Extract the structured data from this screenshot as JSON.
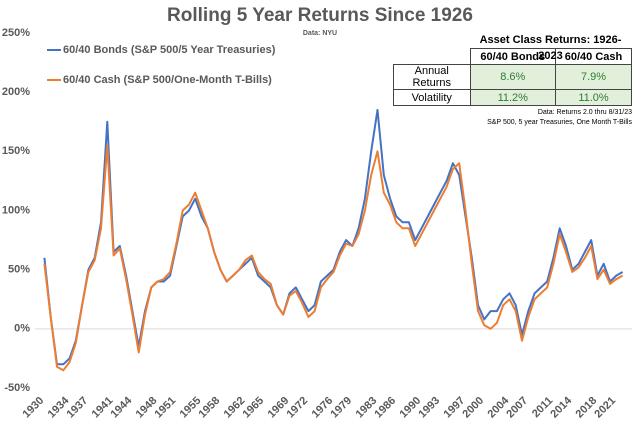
{
  "chart_data": {
    "type": "line",
    "title": "Rolling 5 Year Returns Since 1926",
    "subtitle": "Data: NYU",
    "x": [
      1931,
      1932,
      1933,
      1934,
      1935,
      1936,
      1937,
      1938,
      1939,
      1940,
      1941,
      1942,
      1943,
      1944,
      1945,
      1946,
      1947,
      1948,
      1949,
      1950,
      1951,
      1952,
      1953,
      1954,
      1955,
      1956,
      1957,
      1958,
      1959,
      1960,
      1961,
      1962,
      1963,
      1964,
      1965,
      1966,
      1967,
      1968,
      1969,
      1970,
      1971,
      1972,
      1973,
      1974,
      1975,
      1976,
      1977,
      1978,
      1979,
      1980,
      1981,
      1982,
      1983,
      1984,
      1985,
      1986,
      1987,
      1988,
      1989,
      1990,
      1991,
      1992,
      1993,
      1994,
      1995,
      1996,
      1997,
      1998,
      1999,
      2000,
      2001,
      2002,
      2003,
      2004,
      2005,
      2006,
      2007,
      2008,
      2009,
      2010,
      2011,
      2012,
      2013,
      2014,
      2015,
      2016,
      2017,
      2018,
      2019,
      2020,
      2021,
      2022,
      2023
    ],
    "series": [
      {
        "name": "60/40 Bonds (S&P 500/5 Year Treasuries)",
        "color": "#4472c4",
        "values": [
          60,
          10,
          -30,
          -30,
          -25,
          -10,
          20,
          50,
          60,
          90,
          175,
          65,
          70,
          45,
          15,
          -15,
          15,
          35,
          40,
          40,
          45,
          70,
          95,
          100,
          110,
          95,
          85,
          65,
          50,
          40,
          45,
          50,
          55,
          60,
          45,
          40,
          35,
          20,
          12,
          30,
          35,
          25,
          15,
          20,
          40,
          45,
          50,
          65,
          75,
          70,
          85,
          110,
          150,
          185,
          130,
          110,
          95,
          90,
          90,
          75,
          85,
          95,
          105,
          115,
          125,
          140,
          130,
          95,
          60,
          20,
          8,
          15,
          15,
          25,
          30,
          20,
          -5,
          15,
          30,
          35,
          40,
          60,
          85,
          70,
          50,
          55,
          65,
          75,
          45,
          55,
          40,
          45,
          48
        ]
      },
      {
        "name": "60/40 Cash (S&P 500/One-Month T-Bills)",
        "color": "#ed7d31",
        "values": [
          55,
          10,
          -32,
          -35,
          -28,
          -12,
          20,
          48,
          58,
          85,
          155,
          62,
          68,
          42,
          12,
          -20,
          12,
          35,
          40,
          42,
          48,
          72,
          100,
          105,
          115,
          100,
          85,
          65,
          50,
          40,
          45,
          50,
          58,
          62,
          48,
          42,
          38,
          20,
          12,
          28,
          32,
          22,
          10,
          15,
          35,
          42,
          48,
          62,
          72,
          70,
          80,
          100,
          130,
          150,
          115,
          105,
          90,
          85,
          85,
          70,
          80,
          90,
          100,
          110,
          120,
          135,
          140,
          100,
          55,
          15,
          3,
          0,
          5,
          20,
          25,
          15,
          -10,
          10,
          25,
          30,
          35,
          55,
          80,
          65,
          48,
          52,
          60,
          70,
          42,
          50,
          38,
          42,
          45
        ]
      }
    ],
    "xlim": [
      1929.5,
      2024.5
    ],
    "xticks": [
      1930,
      1934,
      1937,
      1941,
      1944,
      1948,
      1951,
      1955,
      1958,
      1962,
      1965,
      1969,
      1972,
      1976,
      1979,
      1983,
      1986,
      1990,
      1993,
      1997,
      2000,
      2004,
      2007,
      2011,
      2014,
      2018,
      2021
    ],
    "ylim": [
      -50,
      250
    ],
    "yticks": [
      {
        "value": -50,
        "label": "-50%"
      },
      {
        "value": 0,
        "label": "0%"
      },
      {
        "value": 50,
        "label": "50%"
      },
      {
        "value": 100,
        "label": "100%"
      },
      {
        "value": 150,
        "label": "150%"
      },
      {
        "value": 200,
        "label": "200%"
      },
      {
        "value": 250,
        "label": "250%"
      }
    ],
    "grid": false,
    "table": {
      "title": "Asset Class Returns: 1926-2023",
      "columns": [
        "60/40 Bonds",
        "60/40 Cash"
      ],
      "rows": [
        [
          "Annual Returns",
          "8.6%",
          "7.9%"
        ],
        [
          "Volatility",
          "11.2%",
          "11.0%"
        ]
      ],
      "notes": [
        "Data: Returns 2.0 thru 8/31/23",
        "S&P 500, 5 year Treasuries, One Month T-Bills"
      ]
    }
  }
}
